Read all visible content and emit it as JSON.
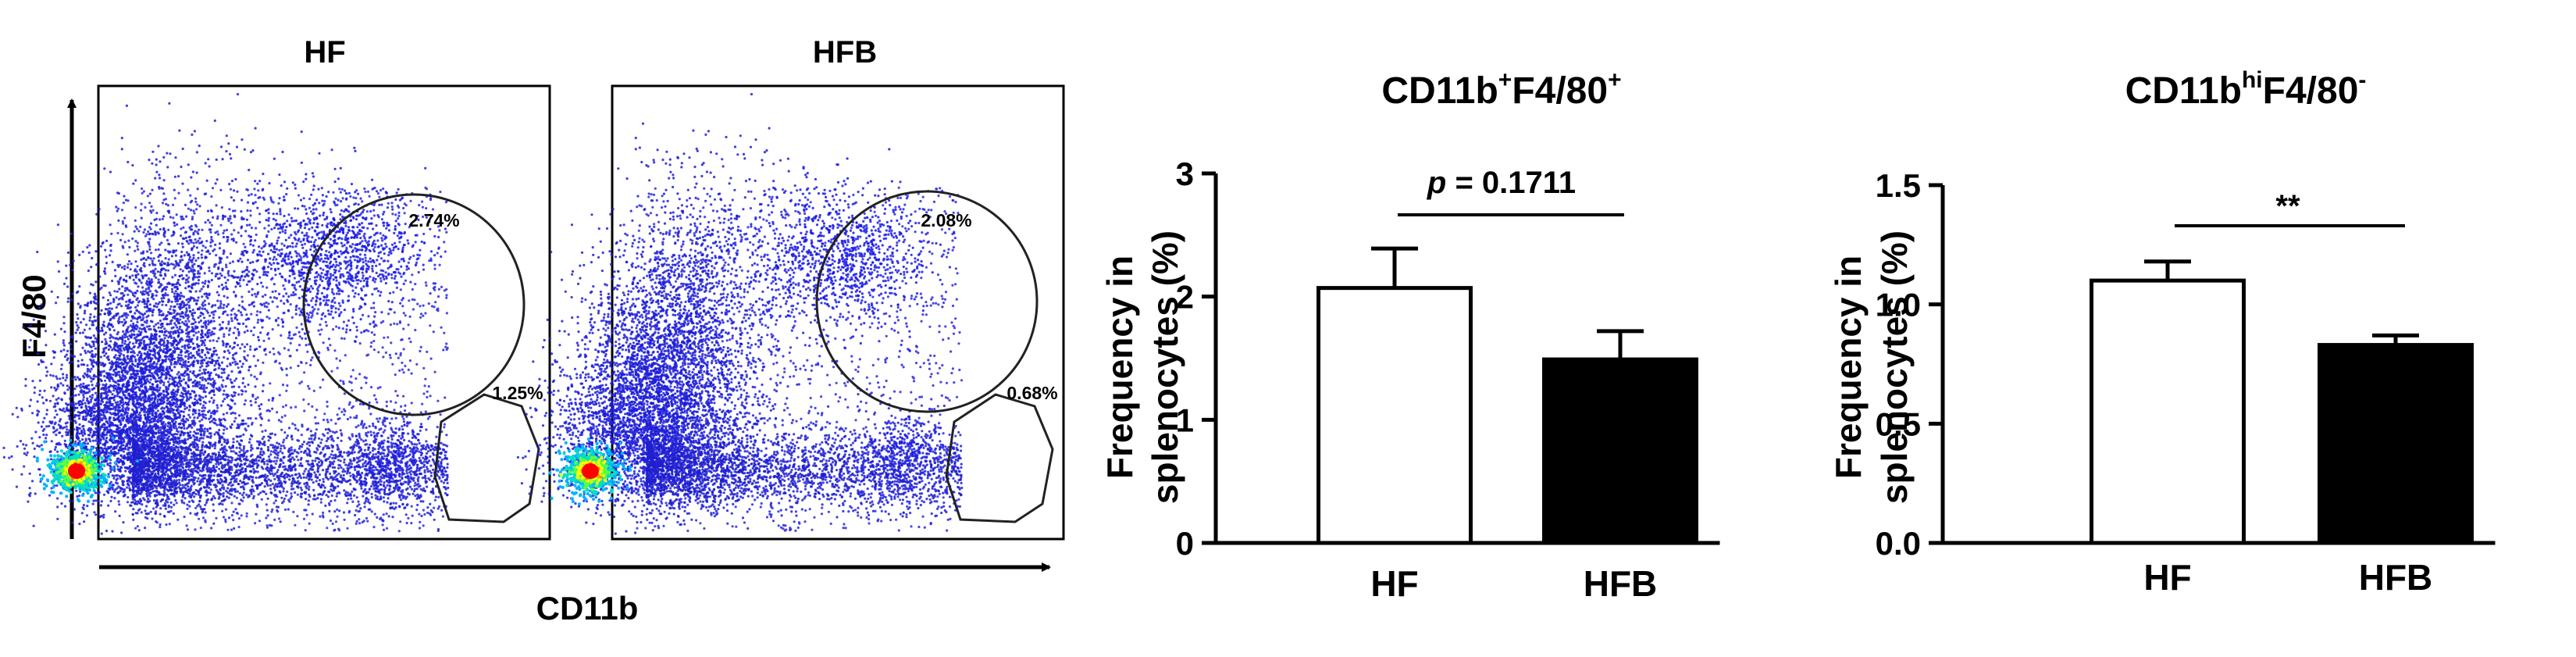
{
  "flow": {
    "x_axis_label": "CD11b",
    "y_axis_label": "F4/80",
    "panels": [
      {
        "name": "HF",
        "circle_gate": "2.74%",
        "lower_gate": "1.25%"
      },
      {
        "name": "HFB",
        "circle_gate": "2.08%",
        "lower_gate": "0.68%"
      }
    ],
    "colors": {
      "sparse": "#0000ff",
      "dense": "#ff0000",
      "gate": "#222222"
    }
  },
  "chart_data": [
    {
      "type": "bar",
      "title_main": "CD11b",
      "title_sup1": "+",
      "title_mid": "F4/80",
      "title_sup2": "+",
      "ylabel_line1": "Frequency in",
      "ylabel_line2": "splenocytes (%)",
      "categories": [
        "HF",
        "HFB"
      ],
      "values": [
        2.07,
        1.49
      ],
      "errors": [
        0.32,
        0.23
      ],
      "fills": [
        "#ffffff",
        "#000000"
      ],
      "ylim": [
        0,
        3
      ],
      "yticks": [
        "0",
        "1",
        "2",
        "3"
      ],
      "annotation_italic": "p",
      "annotation_rest": " = 0.1711"
    },
    {
      "type": "bar",
      "title_main": "CD11b",
      "title_sup1": "hi",
      "title_mid": "F4/80",
      "title_sup2": "-",
      "ylabel_line1": "Frequency in",
      "ylabel_line2": "splenocytes (%)",
      "categories": [
        "HF",
        "HFB"
      ],
      "values": [
        1.1,
        0.83
      ],
      "errors": [
        0.08,
        0.04
      ],
      "fills": [
        "#ffffff",
        "#000000"
      ],
      "ylim": [
        0,
        1.5
      ],
      "yticks": [
        "0.0",
        "0.5",
        "1.0",
        "1.5"
      ],
      "annotation_italic": "",
      "annotation_rest": "**"
    }
  ]
}
